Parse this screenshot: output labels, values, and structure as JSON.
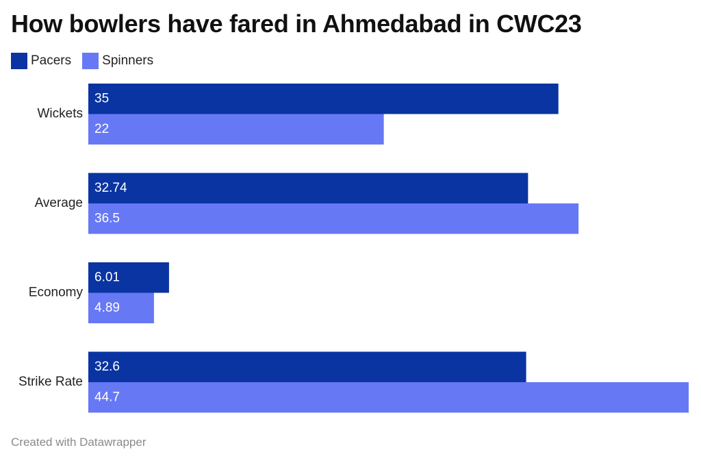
{
  "chart_data": {
    "type": "bar",
    "orientation": "horizontal",
    "title": "How bowlers have fared in Ahmedabad in CWC23",
    "categories": [
      "Wickets",
      "Average",
      "Economy",
      "Strike Rate"
    ],
    "series": [
      {
        "name": "Pacers",
        "color": "#0a34a1",
        "values": [
          35,
          32.74,
          6.01,
          32.6
        ]
      },
      {
        "name": "Spinners",
        "color": "#6778f5",
        "values": [
          22,
          36.5,
          4.89,
          44.7
        ]
      }
    ],
    "value_labels": [
      [
        "35",
        "32.74",
        "6.01",
        "32.6"
      ],
      [
        "22",
        "36.5",
        "4.89",
        "44.7"
      ]
    ],
    "xlim": [
      0,
      44.7
    ],
    "grid": false,
    "legend_position": "top-left"
  },
  "footer": {
    "text": "Created with Datawrapper"
  }
}
